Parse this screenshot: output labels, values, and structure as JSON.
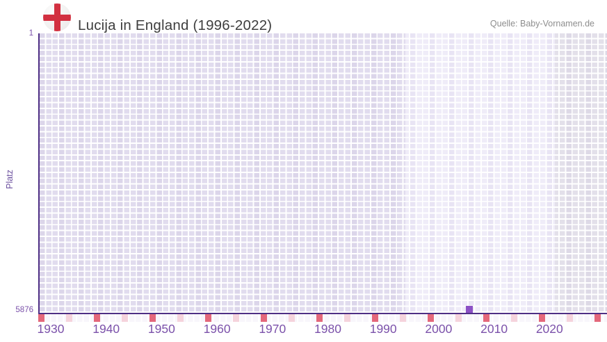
{
  "header": {
    "title": "Lucija in England (1996-2022)",
    "source": "Quelle: Baby-Vornamen.de"
  },
  "chart_data": {
    "type": "scatter",
    "title": "Lucija in England (1996-2022)",
    "xlabel": "",
    "ylabel": "Platz",
    "x_ticks": [
      "1930",
      "1940",
      "1950",
      "1960",
      "1970",
      "1980",
      "1990",
      "2000",
      "2010",
      "2020"
    ],
    "x_range": [
      1928,
      2030
    ],
    "y_ticks": [
      "1",
      "5876"
    ],
    "ylim": [
      1,
      5876
    ],
    "y_inverted": true,
    "grid": true,
    "legend": "none",
    "series": [
      {
        "name": "Lucija",
        "points": [
          {
            "year": 2006,
            "platz": 5876
          }
        ]
      }
    ],
    "bands": [
      {
        "label": "before-records",
        "from": 1928,
        "to": 1994,
        "fill": "#e1dcee"
      },
      {
        "label": "record-period",
        "from": 1994,
        "to": 2021,
        "fill": "#efecf8"
      },
      {
        "label": "future",
        "from": 2021,
        "to": 2030,
        "fill": "#e3e0ea"
      }
    ],
    "marker_color": "#8c51c5",
    "axis_color": "#4e2f85",
    "label_color": "#7b51aa",
    "tick_marks": {
      "dark": "#e4687b",
      "light": "#f5d3dc"
    }
  }
}
